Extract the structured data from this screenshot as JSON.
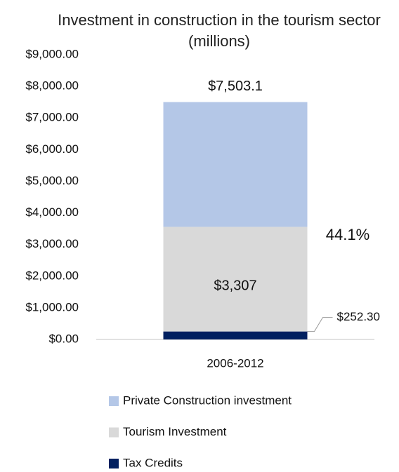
{
  "chart_data": {
    "type": "stacked_bar",
    "title": "Investment in construction in the tourism sector (millions)",
    "categories": [
      "2006-2012"
    ],
    "series": [
      {
        "name": "Private Construction investment",
        "color": "#b4c7e7",
        "values": [
          3943.8
        ]
      },
      {
        "name": "Tourism Investment",
        "color": "#d9d9d9",
        "values": [
          3307
        ],
        "value_labels": [
          "$3,307"
        ]
      },
      {
        "name": "Tax Credits",
        "color": "#002060",
        "values": [
          252.3
        ],
        "value_labels": [
          "$252.30"
        ]
      }
    ],
    "total": {
      "value": 7503.1,
      "label": "$7,503.1"
    },
    "annotations": [
      "44.1%"
    ],
    "ylim": [
      0,
      9000
    ],
    "yticks": [
      {
        "value": 0,
        "label": "$0.00"
      },
      {
        "value": 1000,
        "label": "$1,000.00"
      },
      {
        "value": 2000,
        "label": "$2,000.00"
      },
      {
        "value": 3000,
        "label": "$3,000.00"
      },
      {
        "value": 4000,
        "label": "$4,000.00"
      },
      {
        "value": 5000,
        "label": "$5,000.00"
      },
      {
        "value": 6000,
        "label": "$6,000.00"
      },
      {
        "value": 7000,
        "label": "$7,000.00"
      },
      {
        "value": 8000,
        "label": "$8,000.00"
      },
      {
        "value": 9000,
        "label": "$9,000.00"
      }
    ],
    "grid": false,
    "legend": "bottom"
  }
}
